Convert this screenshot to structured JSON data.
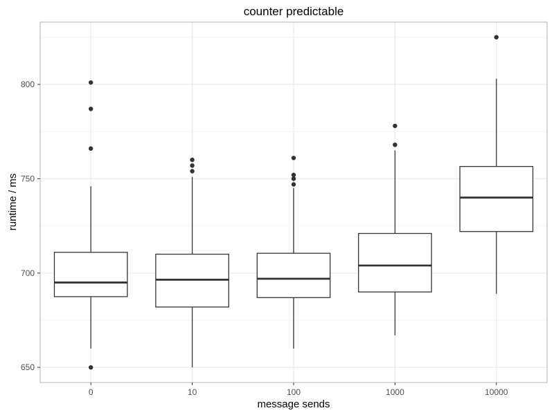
{
  "chart_data": {
    "type": "boxplot",
    "title": "counter predictable",
    "xlabel": "message sends",
    "ylabel": "runtime / ms",
    "categories": [
      "0",
      "10",
      "100",
      "1000",
      "10000"
    ],
    "ylim": [
      642,
      833
    ],
    "yticks": [
      650,
      700,
      750,
      800
    ],
    "grid": true,
    "legend": "none",
    "colors": {
      "box_stroke": "#333333",
      "box_fill": "#ffffff",
      "outlier": "#333333",
      "grid_major": "#ebebeb",
      "grid_minor": "#f5f5f5",
      "panel_border": "#b3b3b3",
      "tick_label": "#4d4d4d",
      "axis_title": "#000000"
    },
    "boxes": [
      {
        "category": "0",
        "whisker_low": 660,
        "q1": 687.5,
        "median": 695,
        "q3": 711,
        "whisker_high": 746,
        "outliers": [
          650,
          766,
          787,
          801
        ]
      },
      {
        "category": "10",
        "whisker_low": 650,
        "q1": 682,
        "median": 696.5,
        "q3": 710,
        "whisker_high": 751,
        "outliers": [
          754,
          757,
          760
        ]
      },
      {
        "category": "100",
        "whisker_low": 660,
        "q1": 687,
        "median": 697,
        "q3": 710.5,
        "whisker_high": 745,
        "outliers": [
          747,
          750,
          752,
          761
        ]
      },
      {
        "category": "1000",
        "whisker_low": 667,
        "q1": 690,
        "median": 704,
        "q3": 721,
        "whisker_high": 765,
        "outliers": [
          768,
          778
        ]
      },
      {
        "category": "10000",
        "whisker_low": 689,
        "q1": 722,
        "median": 740,
        "q3": 756.5,
        "whisker_high": 803,
        "outliers": [
          825
        ]
      }
    ]
  }
}
